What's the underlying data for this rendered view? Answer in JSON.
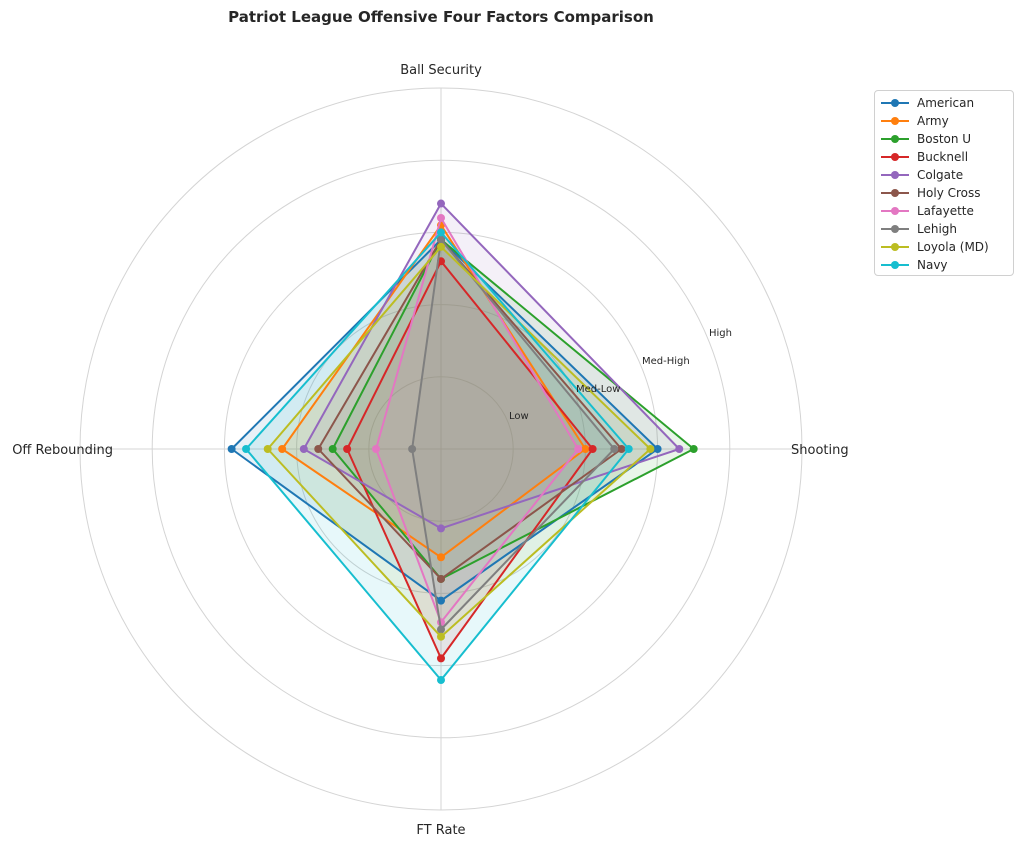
{
  "chart_data": {
    "type": "radar",
    "title": "Patriot League Offensive Four Factors Comparison",
    "axes": [
      "Ball Security",
      "Shooting",
      "FT Rate",
      "Off Rebounding"
    ],
    "ring_labels": [
      "Low",
      "Med-Low",
      "Med-High",
      "High"
    ],
    "rmax": 5,
    "legend_position": "top-right outside",
    "grid": true,
    "series": [
      {
        "name": "American",
        "color": "#1f77b4",
        "values": [
          2.9,
          3.0,
          2.1,
          2.9
        ]
      },
      {
        "name": "Army",
        "color": "#ff7f0e",
        "values": [
          3.1,
          2.0,
          1.5,
          2.2
        ]
      },
      {
        "name": "Boston U",
        "color": "#2ca02c",
        "values": [
          2.9,
          3.5,
          1.8,
          1.5
        ]
      },
      {
        "name": "Bucknell",
        "color": "#d62728",
        "values": [
          2.6,
          2.1,
          2.9,
          1.3
        ]
      },
      {
        "name": "Colgate",
        "color": "#9467bd",
        "values": [
          3.4,
          3.3,
          1.1,
          1.9
        ]
      },
      {
        "name": "Holy Cross",
        "color": "#8c564b",
        "values": [
          2.9,
          2.5,
          1.8,
          1.7
        ]
      },
      {
        "name": "Lafayette",
        "color": "#e377c2",
        "values": [
          3.2,
          1.9,
          2.4,
          0.9
        ]
      },
      {
        "name": "Lehigh",
        "color": "#7f7f7f",
        "values": [
          2.9,
          2.4,
          2.5,
          0.4
        ]
      },
      {
        "name": "Loyola (MD)",
        "color": "#bcbd22",
        "values": [
          2.8,
          2.9,
          2.6,
          2.4
        ]
      },
      {
        "name": "Navy",
        "color": "#17becf",
        "values": [
          3.0,
          2.6,
          3.2,
          2.7
        ]
      }
    ]
  }
}
